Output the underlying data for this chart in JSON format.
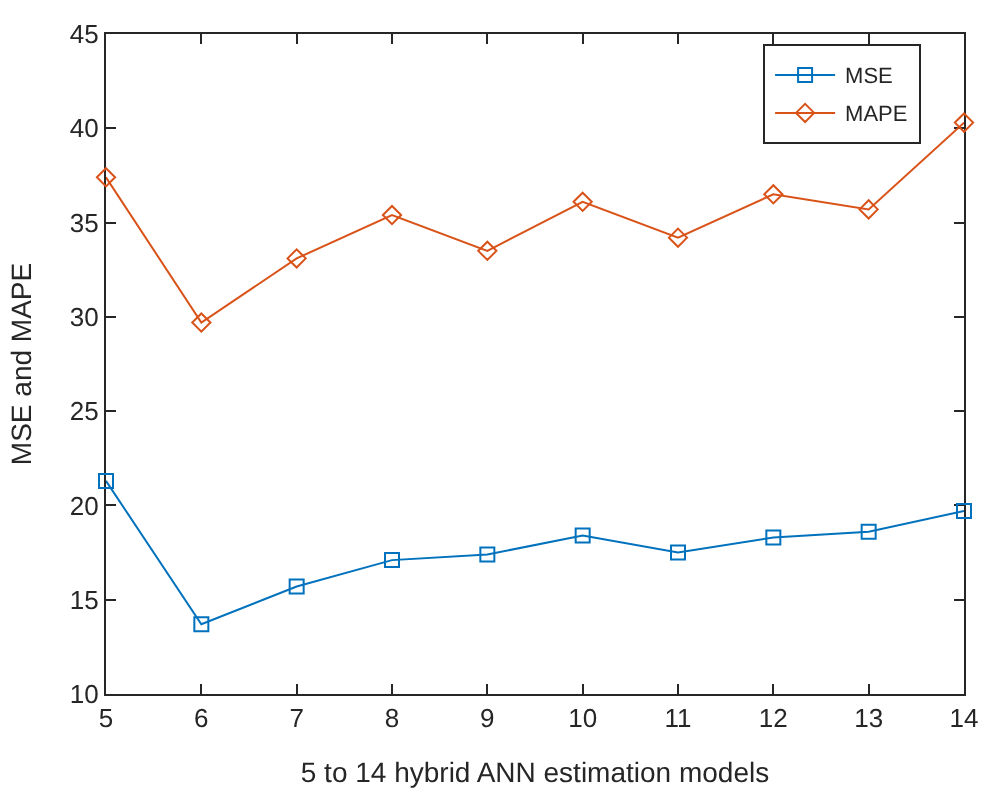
{
  "chart_data": {
    "type": "line",
    "xlabel": "5 to 14 hybrid ANN estimation models",
    "ylabel": "MSE and MAPE",
    "x": [
      5,
      6,
      7,
      8,
      9,
      10,
      11,
      12,
      13,
      14
    ],
    "series": [
      {
        "name": "MSE",
        "color": "#0072bd",
        "marker": "square",
        "values": [
          21.3,
          13.7,
          15.7,
          17.1,
          17.4,
          18.4,
          17.5,
          18.3,
          18.6,
          19.7
        ]
      },
      {
        "name": "MAPE",
        "color": "#d95319",
        "marker": "diamond",
        "values": [
          37.4,
          29.7,
          33.1,
          35.4,
          33.5,
          36.1,
          34.2,
          36.5,
          35.7,
          40.3
        ]
      }
    ],
    "xlim": [
      5,
      14
    ],
    "xticks": [
      5,
      6,
      7,
      8,
      9,
      10,
      11,
      12,
      13,
      14
    ],
    "ylim": [
      10,
      45
    ],
    "yticks": [
      10,
      15,
      20,
      25,
      30,
      35,
      40,
      45
    ],
    "legend": "top right",
    "line_style": "solid"
  }
}
